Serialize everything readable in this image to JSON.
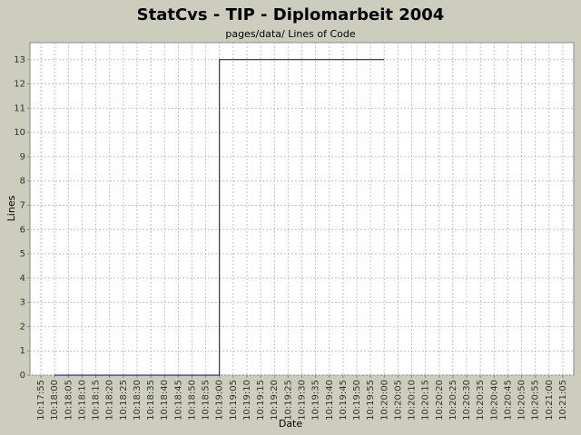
{
  "chart_data": {
    "type": "line",
    "step": true,
    "title": "StatCvs - TIP - Diplomarbeit 2004",
    "subtitle": "pages/data/ Lines of Code",
    "x_label": "Date",
    "y_label": "Lines",
    "x": [
      "10:18:00",
      "10:19:00",
      "10:20:00"
    ],
    "series": [
      {
        "name": "Lines of Code",
        "color": "#000080",
        "values": [
          0,
          13,
          13
        ]
      }
    ],
    "xlim": [
      "10:17:51",
      "10:21:09"
    ],
    "xticks": [
      "10:17:55",
      "10:18:00",
      "10:18:05",
      "10:18:10",
      "10:18:15",
      "10:18:20",
      "10:18:25",
      "10:18:30",
      "10:18:35",
      "10:18:40",
      "10:18:45",
      "10:18:50",
      "10:18:55",
      "10:19:00",
      "10:19:05",
      "10:19:10",
      "10:19:15",
      "10:19:20",
      "10:19:25",
      "10:19:30",
      "10:19:35",
      "10:19:40",
      "10:19:45",
      "10:19:50",
      "10:19:55",
      "10:20:00",
      "10:20:05",
      "10:20:10",
      "10:20:15",
      "10:20:20",
      "10:20:25",
      "10:20:30",
      "10:20:35",
      "10:20:40",
      "10:20:45",
      "10:20:50",
      "10:20:55",
      "10:21:00",
      "10:21:05"
    ],
    "ylim": [
      0,
      13.7
    ],
    "yticks": [
      0,
      1,
      2,
      3,
      4,
      5,
      6,
      7,
      8,
      9,
      10,
      11,
      12,
      13
    ],
    "grid": true
  }
}
